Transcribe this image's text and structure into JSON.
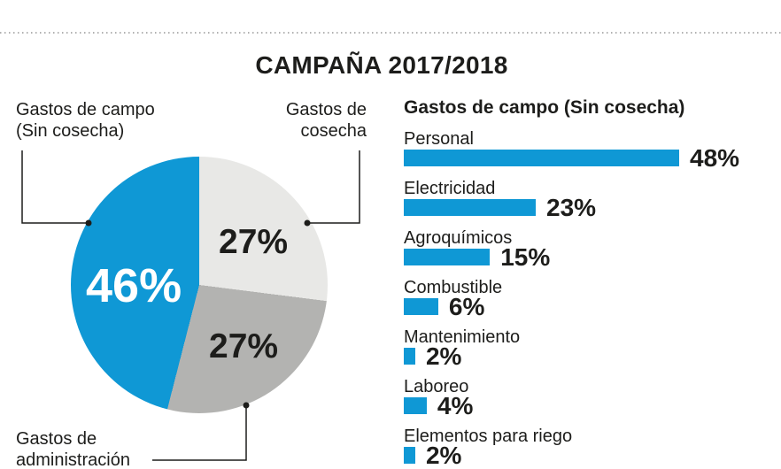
{
  "title": "CAMPAÑA 2017/2018",
  "colors": {
    "accent_blue": "#0f98d5",
    "light_gray": "#e8e8e6",
    "mid_gray": "#b3b3b1",
    "text": "#1d1d1b"
  },
  "chart_data": [
    {
      "type": "pie",
      "title": "CAMPAÑA 2017/2018",
      "direction": "clockwise",
      "start_angle_deg": 0,
      "slices": [
        {
          "label": "Gastos de cosecha",
          "value": 27,
          "display": "27%",
          "color": "#e8e8e6"
        },
        {
          "label": "Gastos de administración",
          "value": 27,
          "display": "27%",
          "color": "#b3b3b1"
        },
        {
          "label": "Gastos de campo (Sin cosecha)",
          "value": 46,
          "display": "46%",
          "color": "#0f98d5"
        }
      ]
    },
    {
      "type": "bar",
      "title": "Gastos de campo (Sin cosecha)",
      "orientation": "horizontal",
      "bar_color": "#0f98d5",
      "categories": [
        "Personal",
        "Electricidad",
        "Agroquímicos",
        "Combustible",
        "Mantenimiento",
        "Laboreo",
        "Elementos para riego"
      ],
      "values": [
        48,
        23,
        15,
        6,
        2,
        4,
        2
      ],
      "value_labels": [
        "48%",
        "23%",
        "15%",
        "6%",
        "2%",
        "4%",
        "2%"
      ],
      "xlim": [
        0,
        50
      ]
    }
  ],
  "pie_labels": {
    "campo": {
      "line1": "Gastos de campo",
      "line2": "(Sin cosecha)"
    },
    "cosecha": {
      "line1": "Gastos de",
      "line2": "cosecha"
    },
    "admin": {
      "line1": "Gastos de",
      "line2": "administración"
    }
  }
}
